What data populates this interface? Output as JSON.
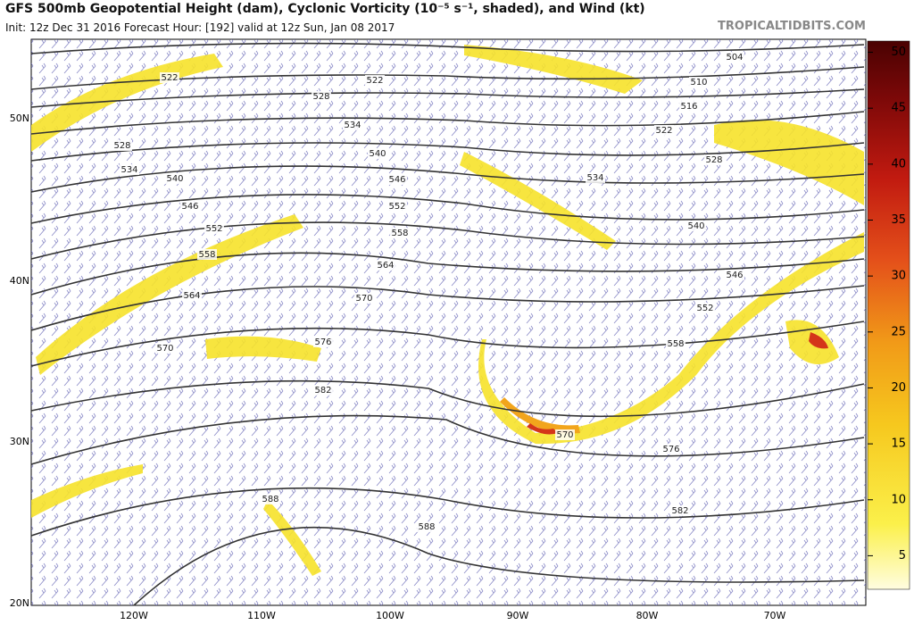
{
  "header": {
    "title": "GFS 500mb Geopotential Height (dam), Cyclonic Vorticity (10⁻⁵ s⁻¹, shaded), and Wind (kt)",
    "subtitle": "Init: 12z Dec 31 2016   Forecast Hour: [192]   valid at 12z Sun, Jan 08 2017",
    "source": "TROPICALTIDBITS.COM"
  },
  "map": {
    "lat_labels": [
      "50N",
      "40N",
      "30N",
      "20N"
    ],
    "lon_labels": [
      "120W",
      "110W",
      "100W",
      "90W",
      "80W",
      "70W"
    ],
    "contour_labels": [
      "522",
      "522",
      "528",
      "534",
      "540",
      "546",
      "552",
      "558",
      "564",
      "570",
      "576",
      "582",
      "570",
      "576",
      "582",
      "588",
      "588",
      "504",
      "510",
      "516",
      "522",
      "528",
      "534",
      "540",
      "546",
      "552",
      "558",
      "528",
      "534",
      "540",
      "546",
      "552",
      "558",
      "564",
      "570"
    ]
  },
  "colorbar": {
    "range": [
      2,
      51
    ],
    "ticks": [
      5,
      10,
      15,
      20,
      25,
      30,
      35,
      40,
      45,
      50
    ]
  }
}
